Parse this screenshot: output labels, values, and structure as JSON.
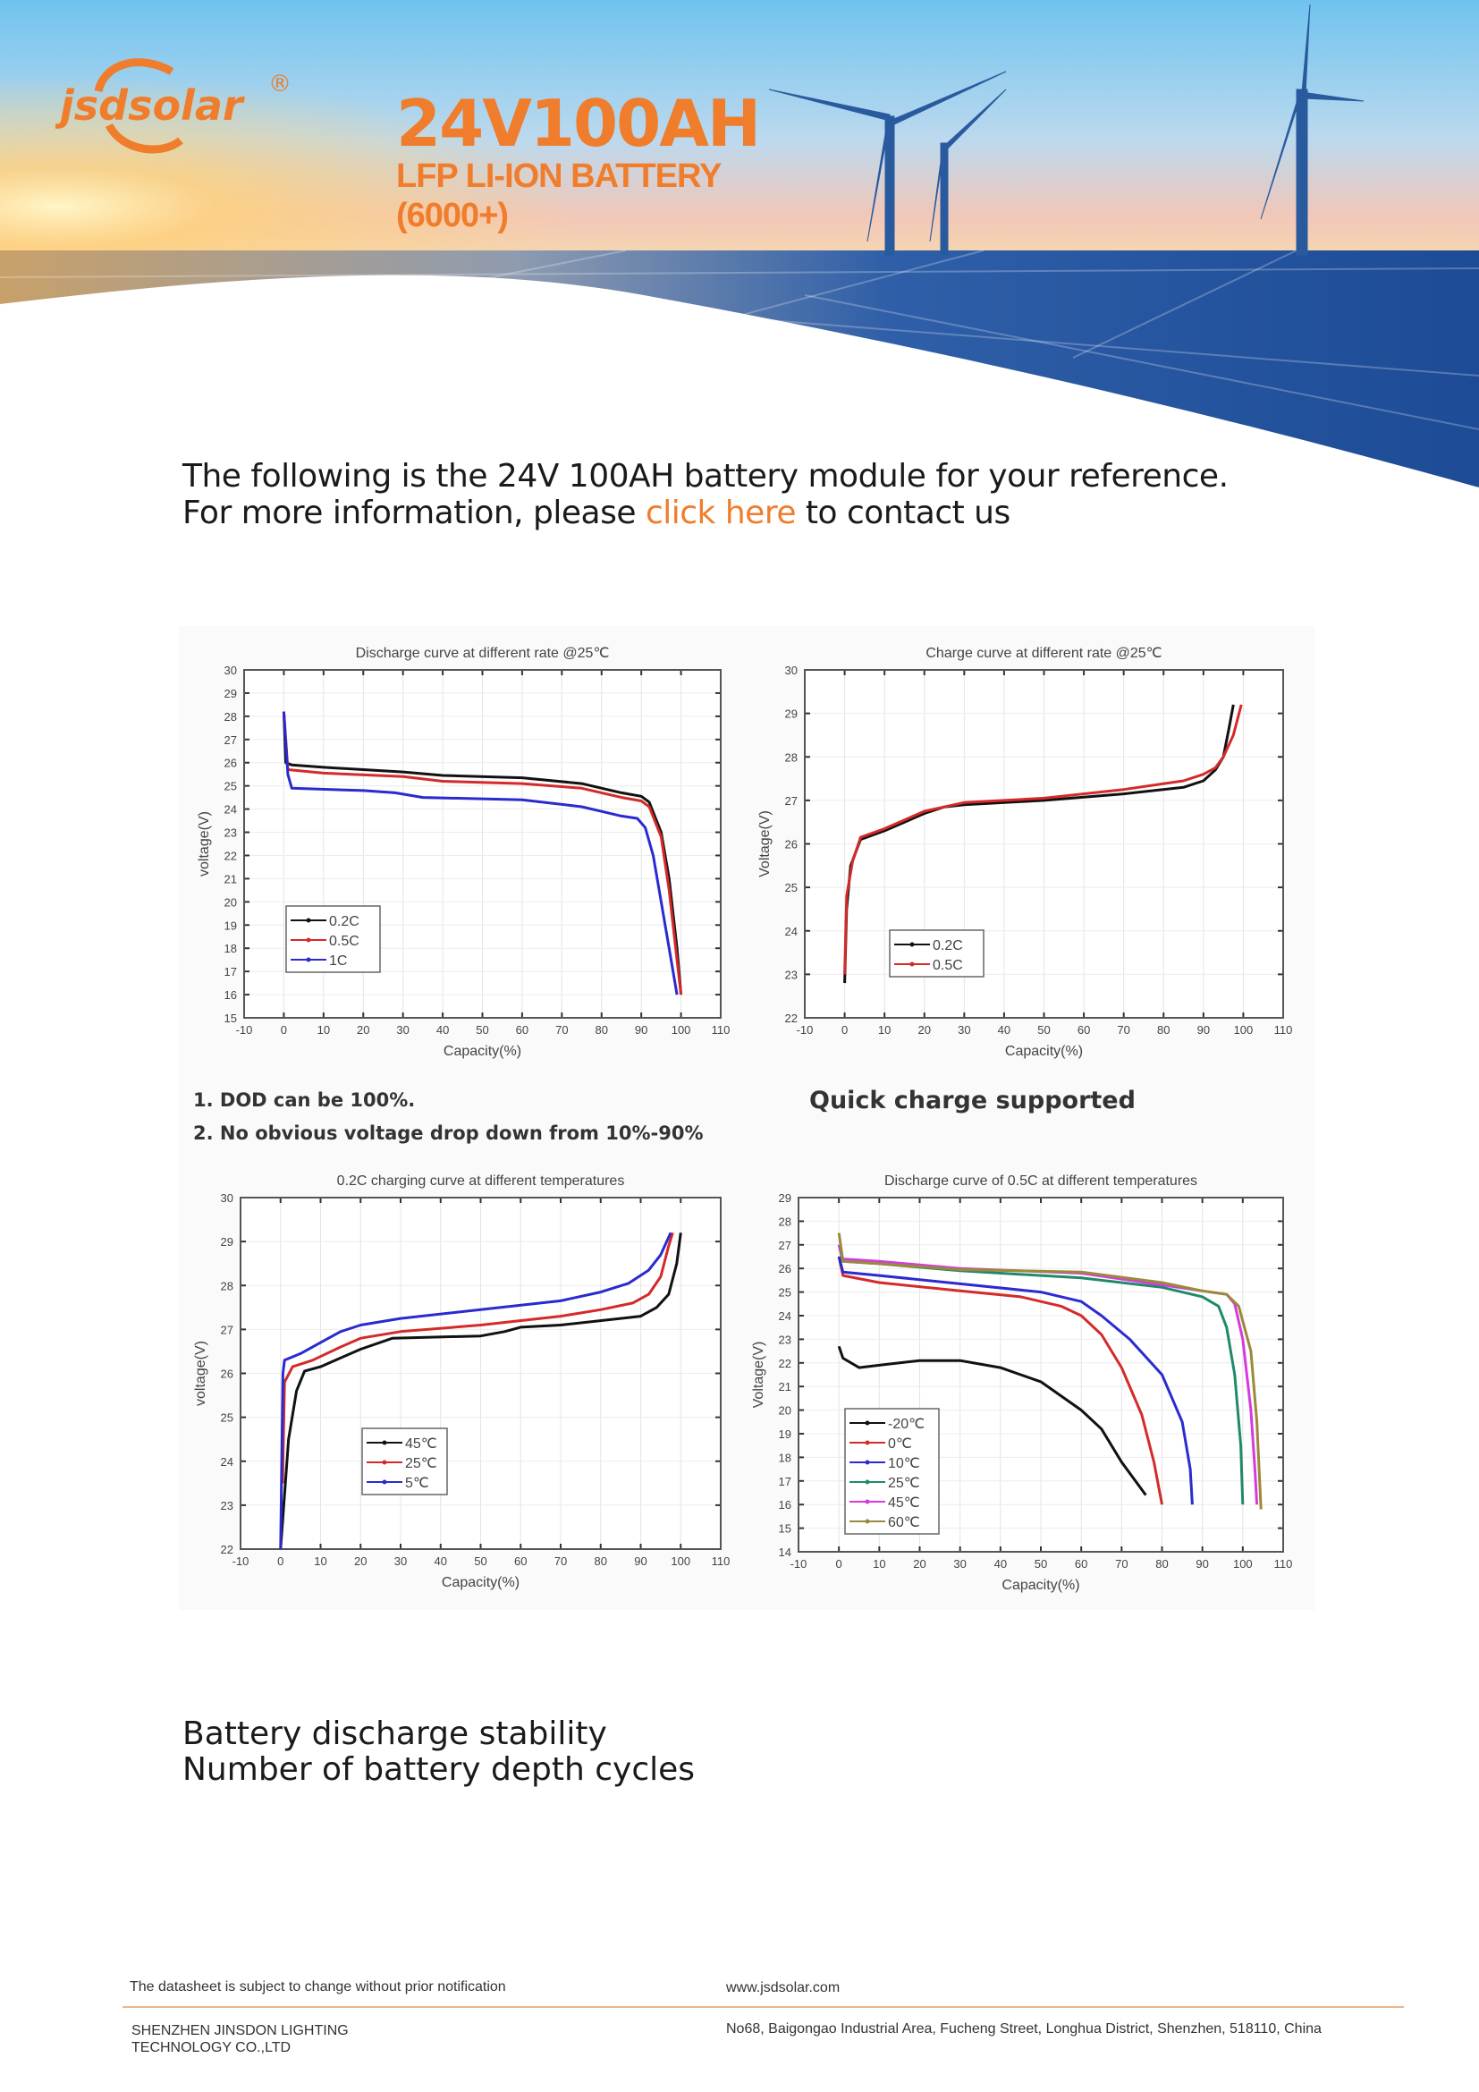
{
  "header": {
    "logo_text": "jsdsolar",
    "logo_mark": "®",
    "title": "24V100AH",
    "subtitle_1": "LFP LI-ION BATTERY",
    "subtitle_2": "(6000+)"
  },
  "intro": {
    "line1": "The following is the 24V 100AH battery module for your reference.",
    "line2_before": "For more information, please ",
    "line2_link": "click here",
    "line2_after": " to contact us"
  },
  "notes": {
    "dod": "1. DOD can be 100%.",
    "drop": "2. No obvious voltage drop down from 10%-90%",
    "quick_charge": "Quick charge supported"
  },
  "sections": {
    "stability": "Battery discharge stability",
    "cycles": "Number of battery depth cycles"
  },
  "footer": {
    "disclaimer": "The datasheet is subject to change without prior notification",
    "website": "www.jsdsolar.com",
    "company_line1": "SHENZHEN JINSDON LIGHTING",
    "company_line2": "TECHNOLOGY CO.,LTD",
    "address": "No68, Baigongao Industrial Area, Fucheng Street, Longhua District, Shenzhen, 518110, China"
  },
  "colors": {
    "brand": "#f07d2c",
    "text": "#1a1a1a"
  },
  "chart_data": [
    {
      "type": "line",
      "title": "Discharge curve at different rate @25℃",
      "xlabel": "Capacity(%)",
      "ylabel": "voltage(V)",
      "xlim": [
        -10,
        110
      ],
      "ylim": [
        15,
        30
      ],
      "grid": true,
      "legend": "lower-left",
      "series": [
        {
          "name": "0.2C",
          "color": "#111111",
          "points": [
            [
              0,
              28.2
            ],
            [
              0.5,
              26
            ],
            [
              2,
              25.9
            ],
            [
              10,
              25.8
            ],
            [
              30,
              25.6
            ],
            [
              40,
              25.45
            ],
            [
              60,
              25.35
            ],
            [
              75,
              25.1
            ],
            [
              85,
              24.7
            ],
            [
              90,
              24.55
            ],
            [
              92,
              24.3
            ],
            [
              95,
              23
            ],
            [
              97,
              21
            ],
            [
              99,
              18
            ],
            [
              100,
              16
            ]
          ]
        },
        {
          "name": "0.5C",
          "color": "#d42a2a",
          "points": [
            [
              0,
              28.2
            ],
            [
              1,
              25.7
            ],
            [
              10,
              25.55
            ],
            [
              30,
              25.4
            ],
            [
              40,
              25.2
            ],
            [
              60,
              25.1
            ],
            [
              75,
              24.9
            ],
            [
              85,
              24.5
            ],
            [
              90,
              24.35
            ],
            [
              92,
              24.1
            ],
            [
              95,
              22.8
            ],
            [
              97,
              20.5
            ],
            [
              99,
              17.5
            ],
            [
              100,
              16
            ]
          ]
        },
        {
          "name": "1C",
          "color": "#2a2ad0",
          "points": [
            [
              0,
              28.2
            ],
            [
              1,
              25.5
            ],
            [
              2,
              24.9
            ],
            [
              20,
              24.8
            ],
            [
              28,
              24.7
            ],
            [
              35,
              24.5
            ],
            [
              60,
              24.4
            ],
            [
              75,
              24.1
            ],
            [
              80,
              23.9
            ],
            [
              85,
              23.7
            ],
            [
              89,
              23.6
            ],
            [
              91,
              23.2
            ],
            [
              93,
              22
            ],
            [
              95,
              20
            ],
            [
              97,
              18
            ],
            [
              99,
              16
            ]
          ]
        }
      ]
    },
    {
      "type": "line",
      "title": "Charge curve at different rate @25℃",
      "xlabel": "Capacity(%)",
      "ylabel": "Voltage(V)",
      "xlim": [
        -10,
        110
      ],
      "ylim": [
        22,
        30
      ],
      "grid": true,
      "legend": "lower-left",
      "series": [
        {
          "name": "0.2C",
          "color": "#111111",
          "points": [
            [
              0,
              22.8
            ],
            [
              0.5,
              24.5
            ],
            [
              1.5,
              25.5
            ],
            [
              4,
              26.1
            ],
            [
              10,
              26.3
            ],
            [
              15,
              26.5
            ],
            [
              20,
              26.7
            ],
            [
              25,
              26.85
            ],
            [
              30,
              26.9
            ],
            [
              50,
              27
            ],
            [
              70,
              27.15
            ],
            [
              85,
              27.3
            ],
            [
              90,
              27.45
            ],
            [
              93,
              27.7
            ],
            [
              95,
              28
            ],
            [
              96.5,
              28.7
            ],
            [
              97.5,
              29.2
            ]
          ]
        },
        {
          "name": "0.5C",
          "color": "#d42a2a",
          "points": [
            [
              0,
              23
            ],
            [
              0.5,
              24.8
            ],
            [
              2,
              25.6
            ],
            [
              4,
              26.15
            ],
            [
              10,
              26.35
            ],
            [
              20,
              26.75
            ],
            [
              30,
              26.95
            ],
            [
              50,
              27.05
            ],
            [
              70,
              27.25
            ],
            [
              85,
              27.45
            ],
            [
              90,
              27.6
            ],
            [
              93,
              27.75
            ],
            [
              95,
              28
            ],
            [
              97.5,
              28.5
            ],
            [
              99.5,
              29.2
            ]
          ]
        }
      ]
    },
    {
      "type": "line",
      "title": "0.2C charging curve at different temperatures",
      "xlabel": "Capacity(%)",
      "ylabel": "voltage(V)",
      "xlim": [
        -10,
        110
      ],
      "ylim": [
        22,
        30
      ],
      "grid": true,
      "legend": "lower-left",
      "series": [
        {
          "name": "45℃",
          "color": "#111111",
          "points": [
            [
              0,
              22
            ],
            [
              2,
              24.5
            ],
            [
              4,
              25.6
            ],
            [
              6,
              26.05
            ],
            [
              10,
              26.15
            ],
            [
              15,
              26.35
            ],
            [
              20,
              26.55
            ],
            [
              28,
              26.8
            ],
            [
              50,
              26.85
            ],
            [
              56,
              26.95
            ],
            [
              60,
              27.05
            ],
            [
              70,
              27.1
            ],
            [
              85,
              27.25
            ],
            [
              90,
              27.3
            ],
            [
              94,
              27.5
            ],
            [
              97,
              27.8
            ],
            [
              99,
              28.5
            ],
            [
              100,
              29.2
            ]
          ]
        },
        {
          "name": "25℃",
          "color": "#d42a2a",
          "points": [
            [
              0.5,
              23.5
            ],
            [
              1,
              25.8
            ],
            [
              3,
              26.15
            ],
            [
              8,
              26.3
            ],
            [
              15,
              26.6
            ],
            [
              20,
              26.8
            ],
            [
              30,
              26.95
            ],
            [
              50,
              27.1
            ],
            [
              70,
              27.3
            ],
            [
              80,
              27.45
            ],
            [
              88,
              27.6
            ],
            [
              92,
              27.8
            ],
            [
              95,
              28.2
            ],
            [
              97,
              28.9
            ],
            [
              98,
              29.2
            ]
          ]
        },
        {
          "name": "5℃",
          "color": "#2a2ad0",
          "points": [
            [
              0,
              22
            ],
            [
              0.3,
              24
            ],
            [
              0.6,
              26
            ],
            [
              1,
              26.3
            ],
            [
              5,
              26.45
            ],
            [
              10,
              26.7
            ],
            [
              15,
              26.95
            ],
            [
              20,
              27.1
            ],
            [
              30,
              27.25
            ],
            [
              50,
              27.45
            ],
            [
              70,
              27.65
            ],
            [
              80,
              27.85
            ],
            [
              87,
              28.05
            ],
            [
              92,
              28.35
            ],
            [
              95,
              28.7
            ],
            [
              97.5,
              29.2
            ]
          ]
        }
      ]
    },
    {
      "type": "line",
      "title": "Discharge curve of 0.5C at different temperatures",
      "xlabel": "Capacity(%)",
      "ylabel": "Voltage(V)",
      "xlim": [
        -10,
        110
      ],
      "ylim": [
        14,
        29
      ],
      "grid": true,
      "legend": "lower-left",
      "series": [
        {
          "name": "-20℃",
          "color": "#111111",
          "points": [
            [
              0,
              22.7
            ],
            [
              1,
              22.2
            ],
            [
              5,
              21.8
            ],
            [
              10,
              21.9
            ],
            [
              20,
              22.1
            ],
            [
              30,
              22.1
            ],
            [
              40,
              21.8
            ],
            [
              50,
              21.2
            ],
            [
              60,
              20
            ],
            [
              65,
              19.2
            ],
            [
              70,
              17.8
            ],
            [
              76,
              16.4
            ]
          ]
        },
        {
          "name": "0℃",
          "color": "#d42a2a",
          "points": [
            [
              0,
              26.5
            ],
            [
              1,
              25.7
            ],
            [
              10,
              25.4
            ],
            [
              30,
              25.05
            ],
            [
              45,
              24.8
            ],
            [
              55,
              24.4
            ],
            [
              60,
              24
            ],
            [
              65,
              23.2
            ],
            [
              70,
              21.8
            ],
            [
              75,
              19.8
            ],
            [
              78,
              17.8
            ],
            [
              80,
              16
            ]
          ]
        },
        {
          "name": "10℃",
          "color": "#2a2ad0",
          "points": [
            [
              0,
              26.5
            ],
            [
              1,
              25.85
            ],
            [
              10,
              25.7
            ],
            [
              30,
              25.35
            ],
            [
              50,
              25
            ],
            [
              60,
              24.6
            ],
            [
              65,
              24
            ],
            [
              72,
              23
            ],
            [
              80,
              21.5
            ],
            [
              85,
              19.5
            ],
            [
              87,
              17.5
            ],
            [
              87.5,
              16
            ]
          ]
        },
        {
          "name": "25℃",
          "color": "#1f8a6a",
          "points": [
            [
              0,
              27
            ],
            [
              1,
              26.3
            ],
            [
              10,
              26.2
            ],
            [
              30,
              25.9
            ],
            [
              60,
              25.6
            ],
            [
              80,
              25.2
            ],
            [
              90,
              24.8
            ],
            [
              94,
              24.4
            ],
            [
              96,
              23.5
            ],
            [
              98,
              21.5
            ],
            [
              99.5,
              18.5
            ],
            [
              100,
              16
            ]
          ]
        },
        {
          "name": "45℃",
          "color": "#d63adf",
          "points": [
            [
              0,
              27
            ],
            [
              1,
              26.4
            ],
            [
              10,
              26.3
            ],
            [
              30,
              26
            ],
            [
              60,
              25.8
            ],
            [
              80,
              25.3
            ],
            [
              90,
              25.05
            ],
            [
              96,
              24.9
            ],
            [
              98,
              24.5
            ],
            [
              100,
              23
            ],
            [
              102,
              20
            ],
            [
              103,
              17.5
            ],
            [
              103.5,
              16
            ]
          ]
        },
        {
          "name": "60℃",
          "color": "#9a8a3a",
          "points": [
            [
              0,
              27.5
            ],
            [
              1,
              26.3
            ],
            [
              10,
              26.2
            ],
            [
              30,
              25.95
            ],
            [
              60,
              25.85
            ],
            [
              80,
              25.4
            ],
            [
              90,
              25.05
            ],
            [
              96,
              24.9
            ],
            [
              99,
              24.4
            ],
            [
              102,
              22.5
            ],
            [
              103.5,
              19.5
            ],
            [
              104.5,
              15.8
            ]
          ]
        }
      ]
    }
  ]
}
